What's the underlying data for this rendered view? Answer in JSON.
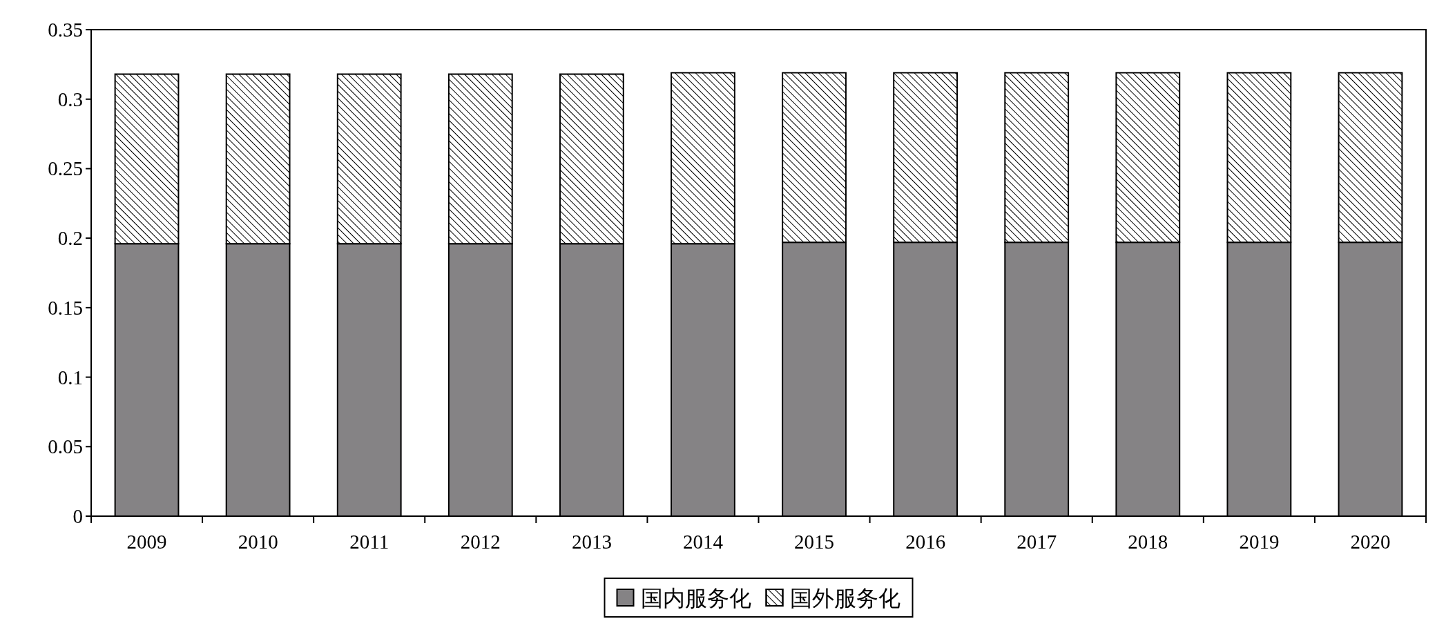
{
  "chart_data": {
    "type": "bar",
    "stacked": true,
    "categories": [
      "2009",
      "2010",
      "2011",
      "2012",
      "2013",
      "2014",
      "2015",
      "2016",
      "2017",
      "2018",
      "2019",
      "2020"
    ],
    "series": [
      {
        "name": "国内服务化",
        "color": "#858385",
        "values": [
          0.196,
          0.196,
          0.196,
          0.196,
          0.196,
          0.196,
          0.197,
          0.197,
          0.197,
          0.197,
          0.197,
          0.197
        ]
      },
      {
        "name": "国外服务化",
        "color": "#000000",
        "values": [
          0.122,
          0.122,
          0.122,
          0.122,
          0.122,
          0.123,
          0.122,
          0.122,
          0.122,
          0.122,
          0.122,
          0.122
        ]
      }
    ],
    "ylim": [
      0,
      0.35
    ],
    "yticks": [
      0,
      0.05,
      0.1,
      0.15,
      0.2,
      0.25,
      0.3,
      0.35
    ],
    "grid": false,
    "legend": "bottom"
  }
}
